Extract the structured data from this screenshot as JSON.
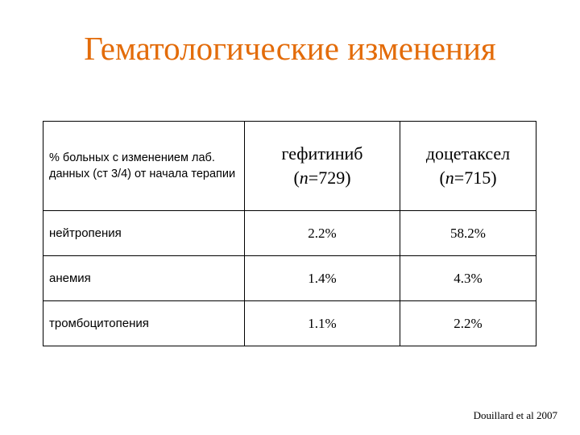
{
  "slide": {
    "title": "Гематологические изменения",
    "title_color": "#e36c0a",
    "source": "Douillard et al 2007"
  },
  "table": {
    "header": {
      "label": "% больных с изменением лаб. данных  (ст 3/4) от начала терапии",
      "columns": [
        {
          "drug": "гефитиниб",
          "n_prefix": "(",
          "n_var": "n",
          "n_rest": "=729)"
        },
        {
          "drug": "доцетаксел",
          "n_prefix": "(",
          "n_var": "n",
          "n_rest": "=715)"
        }
      ]
    },
    "rows": [
      {
        "label": "нейтропения",
        "values": [
          "2.2%",
          "58.2%"
        ]
      },
      {
        "label": "анемия",
        "values": [
          "1.4%",
          "4.3%"
        ]
      },
      {
        "label": "тромбоцитопения",
        "values": [
          "1.1%",
          "2.2%"
        ]
      }
    ]
  }
}
